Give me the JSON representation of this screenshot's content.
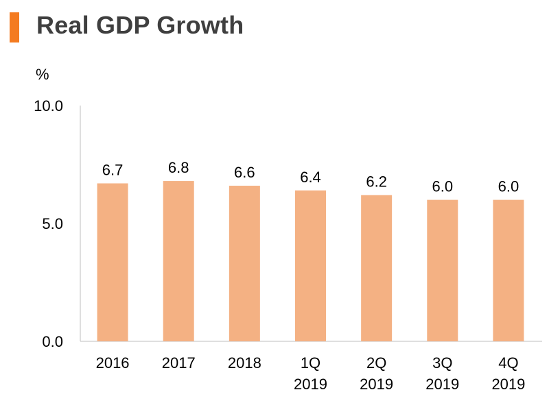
{
  "chart_data": {
    "type": "bar",
    "title": "Real GDP Growth",
    "ylabel": "%",
    "xlabel": "",
    "ylim": [
      0,
      10
    ],
    "yticks": [
      "0.0",
      "5.0",
      "10.0"
    ],
    "ytick_values": [
      0,
      5,
      10
    ],
    "categories": [
      [
        "2016"
      ],
      [
        "2017"
      ],
      [
        "2018"
      ],
      [
        "1Q",
        "2019"
      ],
      [
        "2Q",
        "2019"
      ],
      [
        "3Q",
        "2019"
      ],
      [
        "4Q",
        "2019"
      ]
    ],
    "values": [
      6.7,
      6.8,
      6.6,
      6.4,
      6.2,
      6.0,
      6.0
    ],
    "data_labels": [
      "6.7",
      "6.8",
      "6.6",
      "6.4",
      "6.2",
      "6.0",
      "6.0"
    ],
    "grid": false,
    "legend": "none"
  },
  "colors": {
    "bar": "#f4b183",
    "title_accent": "#f47b20",
    "title_text": "#3f3f3f",
    "axis": "#bfbfbf"
  }
}
